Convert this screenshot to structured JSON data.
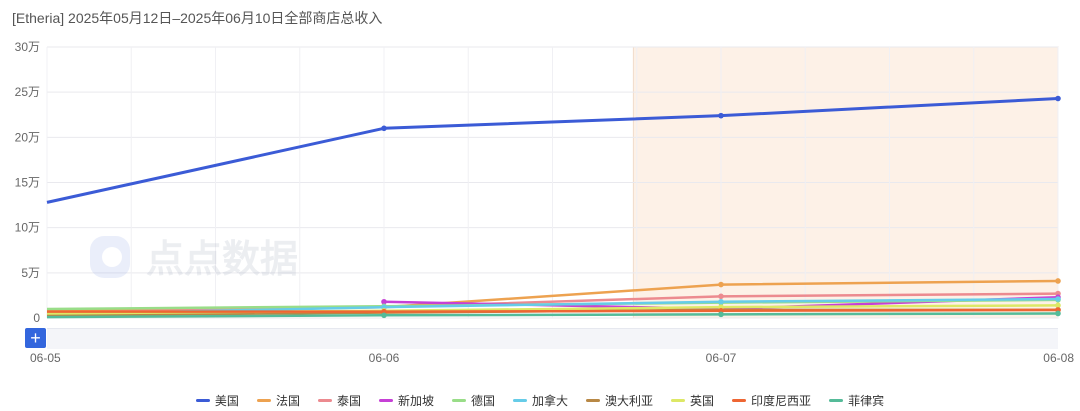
{
  "header": {
    "title": "[Etheria] 2025年05月12日–2025年06月10日全部商店总收入"
  },
  "watermark": "点点数据",
  "controls": {
    "zoom_label": "+"
  },
  "chart_data": {
    "type": "line",
    "x": [
      "06-05",
      "06-06",
      "06-07",
      "06-08"
    ],
    "yticks": [
      "0",
      "5万",
      "10万",
      "15万",
      "20万",
      "25万",
      "30万"
    ],
    "ylim": [
      0,
      300000
    ],
    "highlight_range": [
      1.74,
      3.0
    ],
    "grid": true,
    "legend_position": "bottom-center",
    "series": [
      {
        "name": "美国",
        "color": "#3b5bd6",
        "values": [
          128000,
          210000,
          224000,
          243000
        ]
      },
      {
        "name": "法国",
        "color": "#eda250",
        "values": [
          8000,
          12000,
          37000,
          41000
        ]
      },
      {
        "name": "泰国",
        "color": "#ec8a8f",
        "values": [
          6000,
          12000,
          24000,
          27000
        ]
      },
      {
        "name": "新加坡",
        "color": "#c640d6",
        "values": [
          null,
          18000,
          10000,
          23000
        ]
      },
      {
        "name": "德国",
        "color": "#99dd88",
        "values": [
          10000,
          13000,
          17000,
          20000
        ]
      },
      {
        "name": "加拿大",
        "color": "#66cce8",
        "values": [
          4000,
          12000,
          18000,
          21000
        ]
      },
      {
        "name": "澳大利亚",
        "color": "#b88845",
        "values": [
          3000,
          6000,
          9000,
          9000
        ]
      },
      {
        "name": "英国",
        "color": "#dde866",
        "values": [
          5000,
          8000,
          12000,
          14000
        ]
      },
      {
        "name": "印度尼西亚",
        "color": "#ee6633",
        "values": [
          7000,
          7000,
          8000,
          9000
        ]
      },
      {
        "name": "菲律宾",
        "color": "#55bb99",
        "values": [
          1000,
          3000,
          4000,
          5000
        ]
      }
    ]
  }
}
